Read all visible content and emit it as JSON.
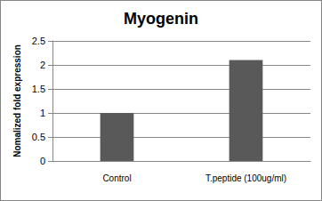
{
  "chart_data": {
    "type": "bar",
    "title": "Myogenin",
    "y_label": "Nomalized fold expression",
    "categories": [
      "Control",
      "T.peptide (100ug/ml)"
    ],
    "values": [
      1,
      2.1
    ],
    "color": "#595959",
    "ylim": [
      0,
      2.5
    ],
    "yticks": [
      0,
      0.5,
      1,
      1.5,
      2,
      2.5
    ],
    "grid": true
  }
}
